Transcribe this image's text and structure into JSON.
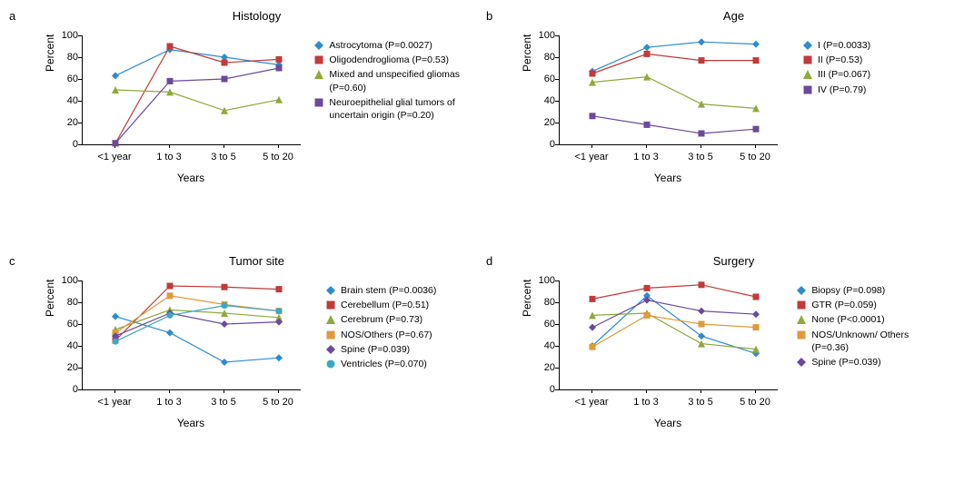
{
  "global": {
    "xlabel": "Years",
    "ylabel": "Percent",
    "ylim": [
      0,
      100
    ],
    "ytick_step": 20,
    "categories": [
      "<1 year",
      "1 to 3",
      "3 to 5",
      "5 to 20"
    ],
    "background_color": "#ffffff",
    "axis_color": "#000000",
    "title_fontsize": 13,
    "label_fontsize": 12,
    "tick_fontsize": 11,
    "legend_fontsize": 10.5,
    "line_width": 1.2,
    "marker_size": 8,
    "colors": {
      "blue": "#2f8bd0",
      "red": "#c23a3a",
      "olive": "#8fa93a",
      "purple": "#6b4a9c",
      "orange": "#e09a3a",
      "cyan": "#3aa9c2"
    },
    "markers": {
      "diamond": "diamond",
      "square": "square",
      "triangle": "triangle",
      "square2": "square",
      "diamond2": "diamond",
      "circle": "circle"
    }
  },
  "panels": [
    {
      "id": "a",
      "title": "Histology",
      "series": [
        {
          "label": "Astrocytoma (P=0.0027)",
          "color": "#2f8bd0",
          "marker": "diamond",
          "values": [
            63,
            87,
            80,
            73
          ]
        },
        {
          "label": "Oligodendroglioma (P=0.53)",
          "color": "#c23a3a",
          "marker": "square",
          "values": [
            1,
            90,
            75,
            78
          ]
        },
        {
          "label": "Mixed and unspecified gliomas (P=0.60)",
          "color": "#8fa93a",
          "marker": "triangle",
          "values": [
            50,
            48,
            31,
            41
          ]
        },
        {
          "label": "Neuroepithelial glial tumors of uncertain origin (P=0.20)",
          "color": "#6b4a9c",
          "marker": "square",
          "values": [
            1,
            58,
            60,
            70
          ]
        }
      ]
    },
    {
      "id": "b",
      "title": "Age",
      "series": [
        {
          "label": "I (P=0.0033)",
          "color": "#2f8bd0",
          "marker": "diamond",
          "values": [
            67,
            89,
            94,
            92
          ]
        },
        {
          "label": "II (P=0.53)",
          "color": "#c23a3a",
          "marker": "square",
          "values": [
            65,
            83,
            77,
            77
          ]
        },
        {
          "label": "III (P=0.067)",
          "color": "#8fa93a",
          "marker": "triangle",
          "values": [
            57,
            62,
            37,
            33
          ]
        },
        {
          "label": "IV (P=0.79)",
          "color": "#6b4a9c",
          "marker": "square",
          "values": [
            26,
            18,
            10,
            14
          ]
        }
      ]
    },
    {
      "id": "c",
      "title": "Tumor site",
      "series": [
        {
          "label": "Brain stem (P=0.0036)",
          "color": "#2f8bd0",
          "marker": "diamond",
          "values": [
            67,
            52,
            25,
            29
          ]
        },
        {
          "label": "Cerebellum (P=0.51)",
          "color": "#c23a3a",
          "marker": "square",
          "values": [
            45,
            95,
            94,
            92
          ]
        },
        {
          "label": "Cerebrum (P=0.73)",
          "color": "#8fa93a",
          "marker": "triangle",
          "values": [
            55,
            73,
            70,
            66
          ]
        },
        {
          "label": "NOS/Others (P=0.67)",
          "color": "#e09a3a",
          "marker": "square",
          "values": [
            52,
            86,
            78,
            72
          ]
        },
        {
          "label": "Spine (P=0.039)",
          "color": "#6b4a9c",
          "marker": "diamond",
          "values": [
            49,
            70,
            60,
            62
          ]
        },
        {
          "label": "Ventricles (P=0.070)",
          "color": "#3aa9c2",
          "marker": "circle",
          "values": [
            44,
            68,
            77,
            72
          ]
        }
      ]
    },
    {
      "id": "d",
      "title": "Surgery",
      "series": [
        {
          "label": "Biopsy (P=0.098)",
          "color": "#2f8bd0",
          "marker": "diamond",
          "values": [
            40,
            86,
            49,
            33
          ]
        },
        {
          "label": "GTR (P=0.059)",
          "color": "#c23a3a",
          "marker": "square",
          "values": [
            83,
            93,
            96,
            85
          ]
        },
        {
          "label": "None (P<0.0001)",
          "color": "#8fa93a",
          "marker": "triangle",
          "values": [
            68,
            70,
            42,
            37
          ]
        },
        {
          "label": "NOS/Unknown/ Others (P=0.36)",
          "color": "#e09a3a",
          "marker": "square",
          "values": [
            39,
            68,
            60,
            57
          ]
        },
        {
          "label": "Spine (P=0.039)",
          "color": "#6b4a9c",
          "marker": "diamond",
          "values": [
            57,
            82,
            72,
            69
          ]
        }
      ]
    }
  ]
}
